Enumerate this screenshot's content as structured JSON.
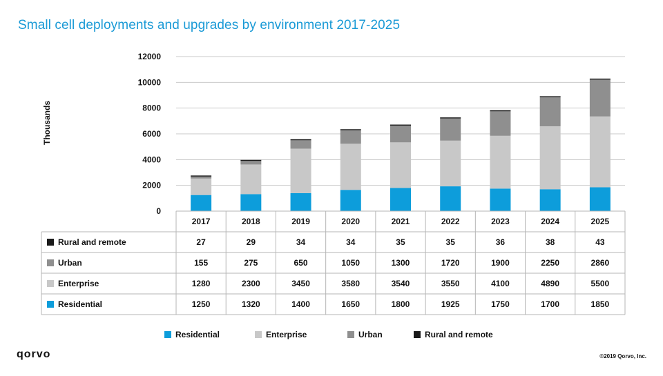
{
  "title": "Small cell deployments and upgrades by environment 2017-2025",
  "ylabel": "Thousands",
  "logo": "qorvo",
  "copyright": "©2019 Qorvo, Inc.",
  "colors": {
    "residential": "#0d9ddb",
    "enterprise": "#c8c8c8",
    "urban": "#8f8f8f",
    "rural": "#1a1a1a",
    "grid": "#c9c9c9",
    "title": "#1a9ad6"
  },
  "chart_data": {
    "type": "bar",
    "stacked": true,
    "title": "Small cell deployments and upgrades by environment 2017-2025",
    "xlabel": "",
    "ylabel": "Thousands",
    "ylim": [
      0,
      12000
    ],
    "yticks": [
      "0",
      "2000",
      "4000",
      "6000",
      "8000",
      "10000",
      "12000"
    ],
    "categories": [
      "2017",
      "2018",
      "2019",
      "2020",
      "2021",
      "2022",
      "2023",
      "2024",
      "2025"
    ],
    "series": [
      {
        "key": "residential",
        "name": "Residential",
        "values": [
          1250,
          1320,
          1400,
          1650,
          1800,
          1925,
          1750,
          1700,
          1850
        ]
      },
      {
        "key": "enterprise",
        "name": "Enterprise",
        "values": [
          1280,
          2300,
          3450,
          3580,
          3540,
          3550,
          4100,
          4890,
          5500
        ]
      },
      {
        "key": "urban",
        "name": "Urban",
        "values": [
          155,
          275,
          650,
          1050,
          1300,
          1720,
          1900,
          2250,
          2860
        ]
      },
      {
        "key": "rural",
        "name": "Rural and remote",
        "values": [
          27,
          29,
          34,
          34,
          35,
          35,
          36,
          38,
          43
        ]
      }
    ],
    "table_rows": [
      {
        "key": "rural",
        "label": "Rural and remote",
        "values": [
          "27",
          "29",
          "34",
          "34",
          "35",
          "35",
          "36",
          "38",
          "43"
        ]
      },
      {
        "key": "urban",
        "label": "Urban",
        "values": [
          "155",
          "275",
          "650",
          "1050",
          "1300",
          "1720",
          "1900",
          "2250",
          "2860"
        ]
      },
      {
        "key": "enterprise",
        "label": "Enterprise",
        "values": [
          "1280",
          "2300",
          "3450",
          "3580",
          "3540",
          "3550",
          "4100",
          "4890",
          "5500"
        ]
      },
      {
        "key": "residential",
        "label": "Residential",
        "values": [
          "1250",
          "1320",
          "1400",
          "1650",
          "1800",
          "1925",
          "1750",
          "1700",
          "1850"
        ]
      }
    ],
    "legend": [
      "Residential",
      "Enterprise",
      "Urban",
      "Rural and remote"
    ],
    "legend_position": "bottom"
  }
}
